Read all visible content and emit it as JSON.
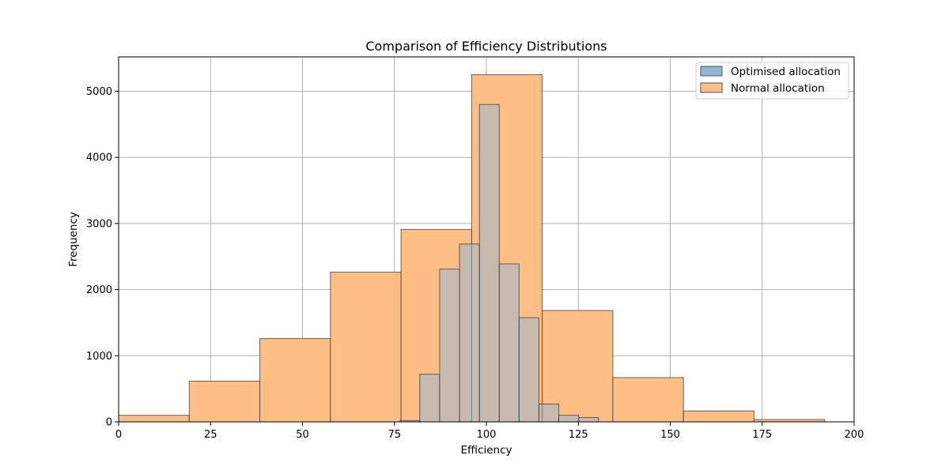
{
  "chart_data": {
    "type": "bar",
    "title": "Comparison of Efficiency Distributions",
    "xlabel": "Efficiency",
    "ylabel": "Frequency",
    "xlim": [
      0,
      200
    ],
    "ylim": [
      0,
      5520
    ],
    "xticks": [
      0,
      25,
      50,
      75,
      100,
      125,
      150,
      175,
      200
    ],
    "yticks": [
      0,
      1000,
      2000,
      3000,
      4000,
      5000
    ],
    "grid": true,
    "legend_position": "top-right",
    "series": [
      {
        "name": "Normal allocation",
        "color": "#ffbe86",
        "bins": [
          {
            "start": 0.0,
            "end": 19.2,
            "count": 100
          },
          {
            "start": 19.2,
            "end": 38.4,
            "count": 615
          },
          {
            "start": 38.4,
            "end": 57.6,
            "count": 1260
          },
          {
            "start": 57.6,
            "end": 76.8,
            "count": 2265
          },
          {
            "start": 76.8,
            "end": 96.0,
            "count": 2910
          },
          {
            "start": 96.0,
            "end": 115.2,
            "count": 5250
          },
          {
            "start": 115.2,
            "end": 134.4,
            "count": 1685
          },
          {
            "start": 134.4,
            "end": 153.6,
            "count": 670
          },
          {
            "start": 153.6,
            "end": 172.8,
            "count": 165
          },
          {
            "start": 172.8,
            "end": 192.0,
            "count": 35
          }
        ]
      },
      {
        "name": "Optimised allocation",
        "color": "#8fb8d8",
        "bins": [
          {
            "start": 76.5,
            "end": 81.9,
            "count": 20
          },
          {
            "start": 81.9,
            "end": 87.3,
            "count": 720
          },
          {
            "start": 87.3,
            "end": 92.7,
            "count": 2310
          },
          {
            "start": 92.7,
            "end": 98.1,
            "count": 2690
          },
          {
            "start": 98.1,
            "end": 103.5,
            "count": 4800
          },
          {
            "start": 103.5,
            "end": 108.9,
            "count": 2390
          },
          {
            "start": 108.9,
            "end": 114.3,
            "count": 1575
          },
          {
            "start": 114.3,
            "end": 119.7,
            "count": 270
          },
          {
            "start": 119.7,
            "end": 125.1,
            "count": 100
          },
          {
            "start": 125.1,
            "end": 130.5,
            "count": 65
          }
        ]
      }
    ],
    "legend": [
      "Optimised allocation",
      "Normal allocation"
    ]
  }
}
